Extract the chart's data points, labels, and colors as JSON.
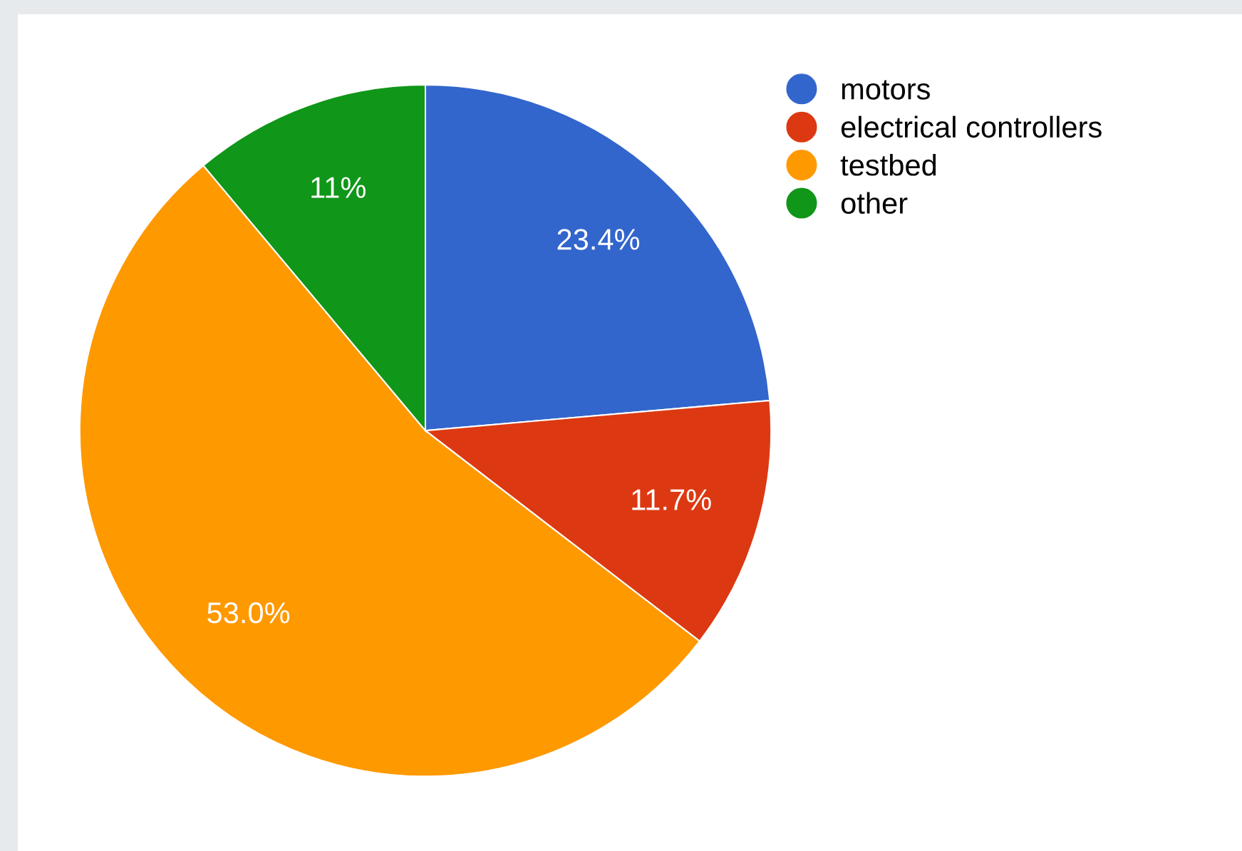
{
  "chart_data": {
    "type": "pie",
    "categories": [
      "motors",
      "electrical controllers",
      "testbed",
      "other"
    ],
    "values": [
      23.4,
      11.7,
      53.0,
      11
    ],
    "value_labels": [
      "23.4%",
      "11.7%",
      "53.0%",
      "11%"
    ],
    "colors": [
      "#3366cc",
      "#dc3912",
      "#ff9900",
      "#109618"
    ],
    "legend": "top right"
  }
}
